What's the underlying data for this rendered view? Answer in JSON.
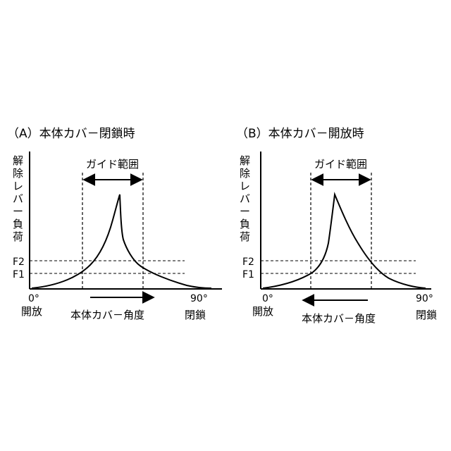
{
  "panels": [
    {
      "id": "A",
      "title": "（A）本体カバ－閉鎖時",
      "y_label": "解除レバー負荷",
      "guide_range_label": "ガイド範囲",
      "levels": [
        "F2",
        "F1"
      ],
      "x_start_tick": "0°",
      "x_end_tick": "90°",
      "x_start_label": "開放",
      "x_end_label": "閉鎖",
      "x_axis_label": "本体カバ－角度",
      "arrow_direction": "right"
    },
    {
      "id": "B",
      "title": "（B）本体カバ－開放時",
      "y_label": "解除レバー負荷",
      "guide_range_label": "ガイド範囲",
      "levels": [
        "F2",
        "F1"
      ],
      "x_start_tick": "0°",
      "x_end_tick": "90°",
      "x_start_label": "開放",
      "x_end_label": "閉鎖",
      "x_axis_label": "本体カバ－角度",
      "arrow_direction": "left"
    }
  ]
}
